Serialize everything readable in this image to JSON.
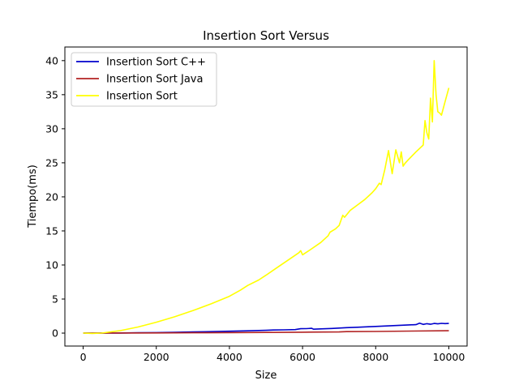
{
  "chart_data": {
    "type": "line",
    "title": "Insertion Sort Versus",
    "xlabel": "Size",
    "ylabel": "Tiempo(ms)",
    "xlim": [
      -500,
      10500
    ],
    "ylim": [
      -1.9,
      42
    ],
    "xticks": [
      0,
      2000,
      4000,
      6000,
      8000,
      10000
    ],
    "yticks": [
      0,
      5,
      10,
      15,
      20,
      25,
      30,
      35,
      40
    ],
    "grid": false,
    "legend_position": "top-left",
    "series": [
      {
        "name": "Insertion Sort C++",
        "color": "#0000cc",
        "x": [
          0,
          500,
          1000,
          1500,
          2000,
          2500,
          3000,
          3500,
          4000,
          4500,
          5000,
          5200,
          5500,
          5800,
          5950,
          6100,
          6250,
          6300,
          6500,
          6800,
          7000,
          7200,
          7500,
          7800,
          8000,
          8300,
          8600,
          8900,
          9100,
          9200,
          9300,
          9400,
          9500,
          9600,
          9700,
          9800,
          9900,
          10000
        ],
        "y": [
          0.0,
          0.0,
          0.02,
          0.05,
          0.08,
          0.12,
          0.17,
          0.22,
          0.28,
          0.34,
          0.41,
          0.46,
          0.48,
          0.52,
          0.65,
          0.66,
          0.7,
          0.58,
          0.62,
          0.68,
          0.74,
          0.8,
          0.86,
          0.93,
          0.98,
          1.05,
          1.12,
          1.2,
          1.24,
          1.45,
          1.28,
          1.38,
          1.3,
          1.42,
          1.36,
          1.43,
          1.4,
          1.42
        ]
      },
      {
        "name": "Insertion Sort Java",
        "color": "#b22222",
        "x": [
          0,
          1000,
          2000,
          3000,
          4000,
          5000,
          6000,
          7000,
          7200,
          8000,
          9000,
          10000
        ],
        "y": [
          0.0,
          0.01,
          0.03,
          0.05,
          0.08,
          0.1,
          0.13,
          0.17,
          0.22,
          0.24,
          0.3,
          0.35
        ]
      },
      {
        "name": "Insertion Sort",
        "color": "#ffff00",
        "x": [
          0,
          250,
          500,
          1000,
          1500,
          2000,
          2500,
          3000,
          3500,
          4000,
          4300,
          4500,
          4800,
          5000,
          5300,
          5600,
          5900,
          5950,
          6000,
          6200,
          6500,
          6700,
          6750,
          6900,
          7000,
          7100,
          7150,
          7300,
          7500,
          7700,
          7900,
          8000,
          8100,
          8150,
          8250,
          8350,
          8450,
          8550,
          8650,
          8700,
          8750,
          8800,
          8900,
          9100,
          9300,
          9350,
          9400,
          9450,
          9500,
          9550,
          9600,
          9650,
          9700,
          9750,
          9800,
          9900,
          10000
        ],
        "y": [
          0.0,
          -0.05,
          0.0,
          0.35,
          0.9,
          1.6,
          2.4,
          3.3,
          4.3,
          5.4,
          6.3,
          7.0,
          7.8,
          8.5,
          9.6,
          10.7,
          11.8,
          12.1,
          11.5,
          12.2,
          13.3,
          14.3,
          14.8,
          15.3,
          15.8,
          17.3,
          17.0,
          18.0,
          18.8,
          19.6,
          20.6,
          21.2,
          22.0,
          21.8,
          24.0,
          26.8,
          23.4,
          26.9,
          25.0,
          26.6,
          24.5,
          24.9,
          25.5,
          26.6,
          27.6,
          31.2,
          29.4,
          28.5,
          34.5,
          31.0,
          40.0,
          35.0,
          32.5,
          32.3,
          32.0,
          34.0,
          36.0
        ]
      }
    ]
  }
}
